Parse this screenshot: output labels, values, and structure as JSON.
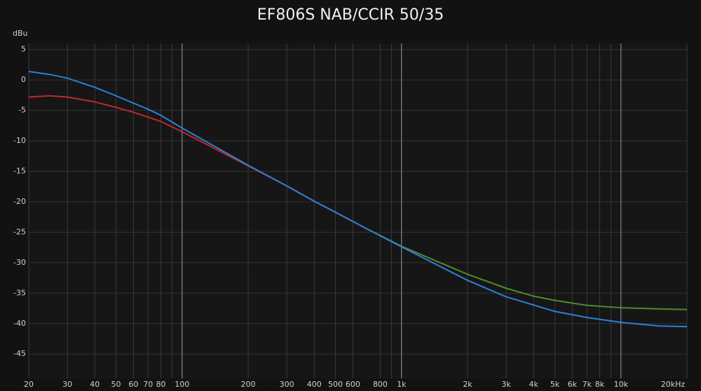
{
  "chart_data": {
    "type": "line",
    "title": "EF806S NAB/CCIR 50/35",
    "y_label": "dBu",
    "x_scale": "log",
    "grid": true,
    "xlim": [
      20,
      20000
    ],
    "ylim": [
      -49,
      6
    ],
    "xticks": [
      20,
      30,
      40,
      50,
      60,
      70,
      80,
      100,
      200,
      300,
      400,
      500,
      600,
      800,
      {
        "value": 1000,
        "label": "1k"
      },
      {
        "value": 2000,
        "label": "2k"
      },
      {
        "value": 3000,
        "label": "3k"
      },
      {
        "value": 4000,
        "label": "4k"
      },
      {
        "value": 5000,
        "label": "5k"
      },
      {
        "value": 6000,
        "label": "6k"
      },
      {
        "value": 7000,
        "label": "7k"
      },
      {
        "value": 8000,
        "label": "8k"
      },
      {
        "value": 10000,
        "label": "10k"
      },
      {
        "value": 20000,
        "label": "20kHz"
      }
    ],
    "xgrid_minor": [
      90,
      900,
      9000
    ],
    "yticks": [
      5,
      0,
      -5,
      -10,
      -15,
      -20,
      -25,
      -30,
      -35,
      -40,
      -45
    ],
    "series": [
      {
        "color": "#c0282c",
        "x": [
          20,
          25,
          30,
          40,
          50,
          60,
          70,
          80,
          100,
          200,
          300,
          400,
          700,
          1000
        ],
        "values": [
          -2.8,
          -2.6,
          -2.8,
          -3.6,
          -4.5,
          -5.3,
          -6.1,
          -6.8,
          -8.5,
          -14.1,
          -17.4,
          -19.9,
          -24.5,
          -27.3
        ]
      },
      {
        "color": "#4f8a30",
        "x": [
          700,
          1000,
          1500,
          2000,
          3000,
          4000,
          5000,
          7000,
          10000,
          15000,
          20000
        ],
        "values": [
          -24.5,
          -27.3,
          -30.0,
          -31.9,
          -34.2,
          -35.5,
          -36.2,
          -37.0,
          -37.4,
          -37.6,
          -37.7
        ]
      },
      {
        "color": "#2b80d6",
        "x": [
          20,
          25,
          30,
          40,
          50,
          60,
          70,
          80,
          100,
          200,
          300,
          400,
          500,
          700,
          1000,
          2000,
          3000,
          5000,
          7000,
          10000,
          15000,
          20000
        ],
        "values": [
          1.4,
          0.9,
          0.3,
          -1.2,
          -2.6,
          -3.8,
          -4.8,
          -5.8,
          -7.9,
          -14.0,
          -17.4,
          -19.9,
          -21.7,
          -24.5,
          -27.4,
          -32.9,
          -35.6,
          -38.0,
          -39.0,
          -39.8,
          -40.4,
          -40.5
        ]
      }
    ]
  }
}
